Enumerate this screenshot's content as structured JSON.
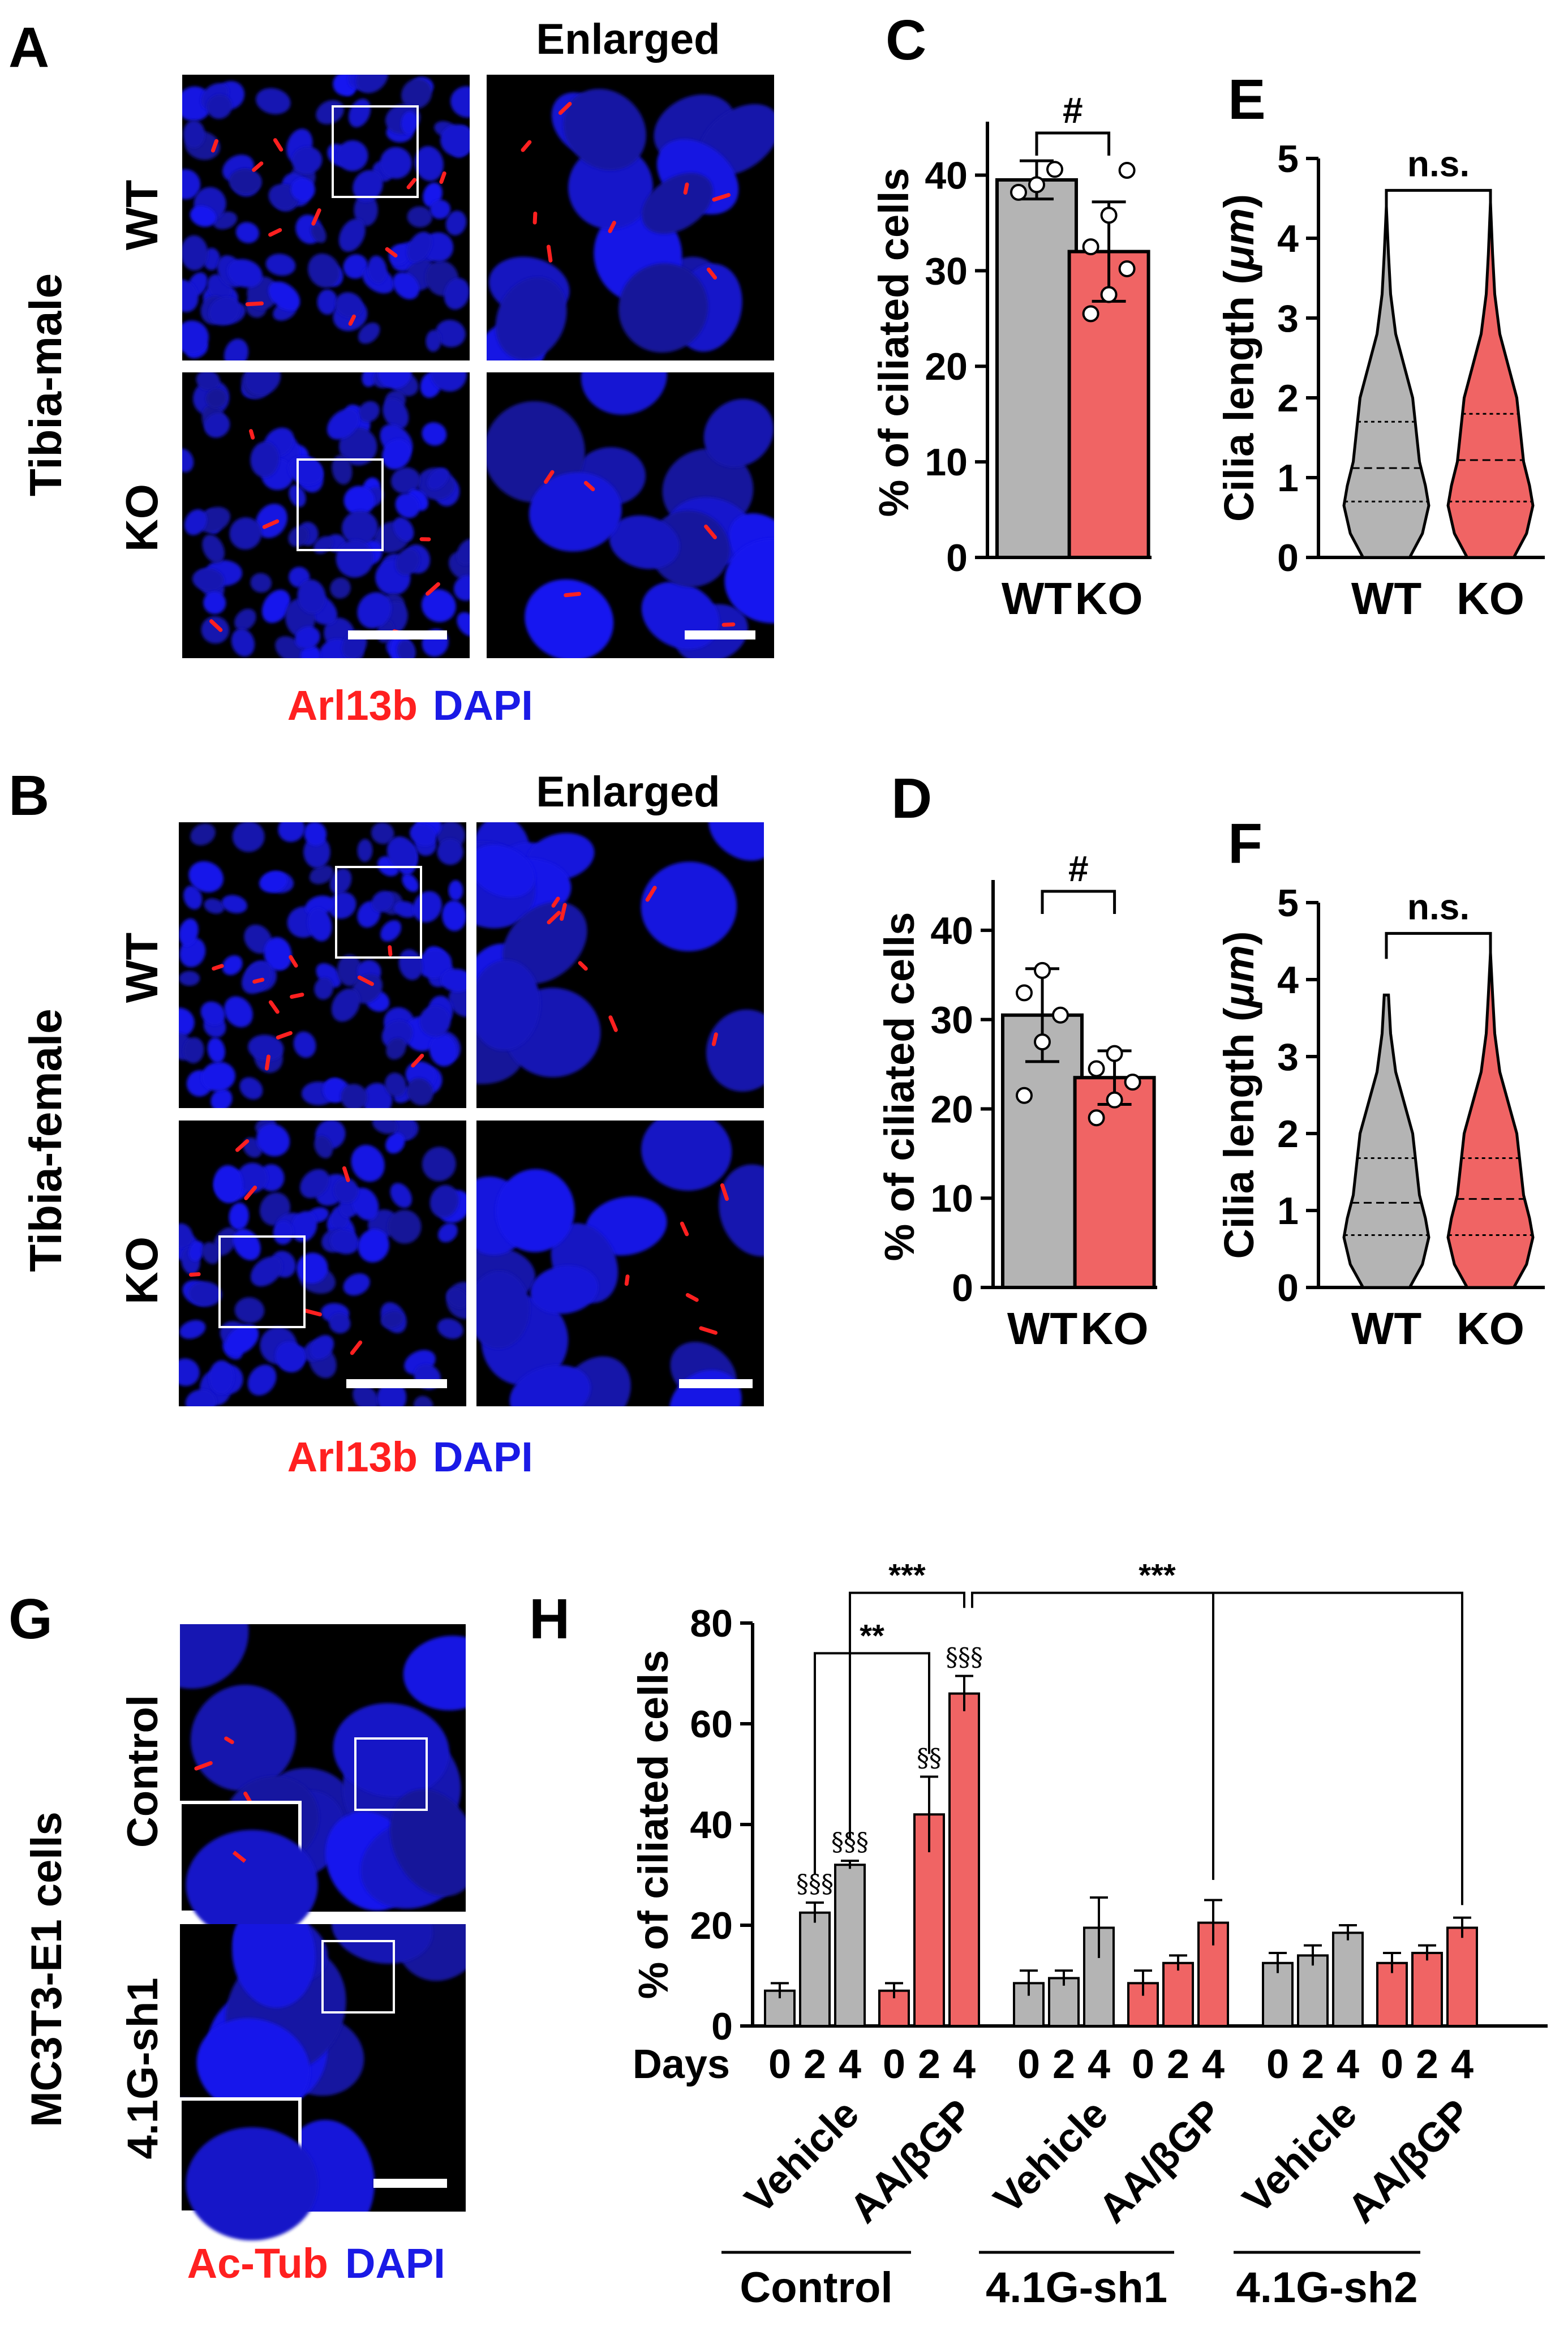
{
  "panels": {
    "A": {
      "letter": "A",
      "enlarged": "Enlarged",
      "side": "Tibia-male",
      "row_top": "WT",
      "row_bottom": "KO",
      "legend_red": "Arl13b",
      "legend_blue": "DAPI"
    },
    "B": {
      "letter": "B",
      "enlarged": "Enlarged",
      "side": "Tibia-female",
      "row_top": "WT",
      "row_bottom": "KO",
      "legend_red": "Arl13b",
      "legend_blue": "DAPI"
    },
    "G": {
      "letter": "G",
      "side": "MC3T3-E1 cells",
      "row_top": "Control",
      "row_bottom": "4.1G-sh1",
      "legend_red": "Ac-Tub",
      "legend_blue": "DAPI"
    }
  },
  "colors": {
    "wt": "#b4b4b4",
    "ko": "#f06464",
    "blue": "#1a1ae6",
    "red": "#ff2020"
  },
  "chart_data": [
    {
      "id": "C",
      "letter": "C",
      "type": "bar",
      "categories": [
        "WT",
        "KO"
      ],
      "values": [
        39.5,
        32.0
      ],
      "errors": [
        2.0,
        5.2
      ],
      "points": [
        [
          38.2,
          39.0,
          40.6
        ],
        [
          25.5,
          27.5,
          30.2,
          32.5,
          35.8,
          40.5
        ]
      ],
      "ylabel": "% of ciliated cells",
      "ylim": [
        0,
        45
      ],
      "yticks": [
        0,
        10,
        20,
        30,
        40
      ],
      "sig": "#"
    },
    {
      "id": "D",
      "letter": "D",
      "type": "bar",
      "categories": [
        "WT",
        "KO"
      ],
      "values": [
        30.5,
        23.5
      ],
      "errors": [
        5.2,
        3.0
      ],
      "points": [
        [
          21.5,
          27.5,
          30.5,
          33.0,
          35.5
        ],
        [
          19.0,
          21.0,
          23.0,
          24.5,
          26.2
        ]
      ],
      "ylabel": "% of ciliated cells",
      "ylim": [
        0,
        45
      ],
      "yticks": [
        0,
        10,
        20,
        30,
        40
      ],
      "sig": "#"
    },
    {
      "id": "E",
      "letter": "E",
      "type": "violin",
      "categories": [
        "WT",
        "KO"
      ],
      "ylabel_prefix": "Cilia length (",
      "ylabel_unit": "μm",
      "ylabel_suffix": ")",
      "ylim": [
        0,
        5
      ],
      "yticks": [
        0,
        1,
        2,
        3,
        4,
        5
      ],
      "quartiles": [
        [
          0.7,
          1.12,
          1.7
        ],
        [
          0.7,
          1.22,
          1.8
        ]
      ],
      "sig": "n.s."
    },
    {
      "id": "F",
      "letter": "F",
      "type": "violin",
      "categories": [
        "WT",
        "KO"
      ],
      "ylabel_prefix": "Cilia length (",
      "ylabel_unit": "μm",
      "ylabel_suffix": ")",
      "ylim": [
        0,
        5
      ],
      "yticks": [
        0,
        1,
        2,
        3,
        4,
        5
      ],
      "quartiles": [
        [
          0.68,
          1.1,
          1.68
        ],
        [
          0.68,
          1.15,
          1.68
        ]
      ],
      "sig": "n.s."
    },
    {
      "id": "H",
      "letter": "H",
      "type": "bar",
      "ylabel": "% of ciliated cells",
      "ylim": [
        0,
        80
      ],
      "yticks": [
        0,
        20,
        40,
        60,
        80
      ],
      "days_label": "Days",
      "days": [
        "0",
        "2",
        "4"
      ],
      "groups": [
        {
          "treatment": "Vehicle",
          "values": [
            7.0,
            22.5,
            32.0
          ],
          "errors": [
            1.5,
            2.0,
            0.8
          ],
          "marks": [
            "",
            "§§§",
            "§§§"
          ]
        },
        {
          "treatment": "AA/βGP",
          "values": [
            7.0,
            42.0,
            66.0
          ],
          "errors": [
            1.5,
            7.5,
            3.5
          ],
          "marks": [
            "",
            "§§",
            "§§§"
          ]
        },
        {
          "treatment": "Vehicle",
          "values": [
            8.5,
            9.5,
            19.5
          ],
          "errors": [
            2.5,
            1.5,
            6.0
          ],
          "marks": [
            "",
            "",
            ""
          ]
        },
        {
          "treatment": "AA/βGP",
          "values": [
            8.5,
            12.5,
            20.5
          ],
          "errors": [
            2.5,
            1.5,
            4.5
          ],
          "marks": [
            "",
            "",
            ""
          ]
        },
        {
          "treatment": "Vehicle",
          "values": [
            12.5,
            14.0,
            18.5
          ],
          "errors": [
            2.0,
            2.0,
            1.5
          ],
          "marks": [
            "",
            "",
            ""
          ]
        },
        {
          "treatment": "AA/βGP",
          "values": [
            12.5,
            14.5,
            19.5
          ],
          "errors": [
            2.0,
            1.5,
            2.0
          ],
          "marks": [
            "",
            "",
            ""
          ]
        }
      ],
      "clusters": [
        "Control",
        "4.1G-sh1",
        "4.1G-sh2"
      ],
      "sig": [
        "**",
        "***",
        "***"
      ]
    }
  ]
}
